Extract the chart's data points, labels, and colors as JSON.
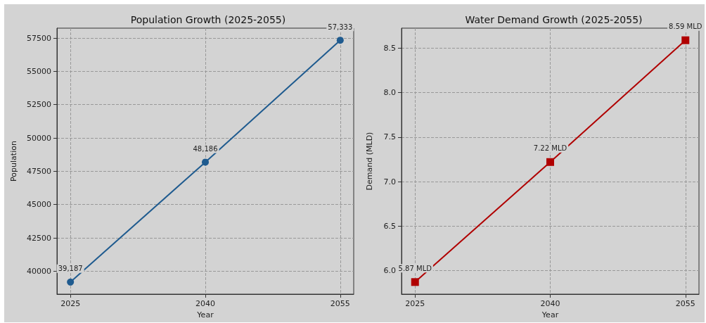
{
  "chart_data": [
    {
      "type": "line",
      "title": "Population Growth (2025-2055)",
      "xlabel": "Year",
      "ylabel": "Population",
      "x": [
        2025,
        2040,
        2055
      ],
      "series": [
        {
          "color": "#1f5b8f",
          "values": [
            39187,
            48186,
            57333
          ],
          "value_labels": [
            "39,187",
            "48,186",
            "57,333"
          ]
        }
      ],
      "xlim": [
        2023.5,
        2056.5
      ],
      "xticks": [
        2025,
        2040,
        2055
      ],
      "ylim": [
        38280,
        58240
      ],
      "yticks": [
        40000,
        42500,
        45000,
        47500,
        50000,
        52500,
        55000,
        57500
      ],
      "grid": true,
      "marker": "circle",
      "line_style": "solid"
    },
    {
      "type": "line",
      "title": "Water Demand Growth (2025-2055)",
      "xlabel": "Year",
      "ylabel": "Demand (MLD)",
      "x": [
        2025,
        2040,
        2055
      ],
      "series": [
        {
          "color": "#b00000",
          "values": [
            5.87,
            7.22,
            8.59
          ],
          "value_labels": [
            "5.87 MLD",
            "7.22 MLD",
            "8.59 MLD"
          ]
        }
      ],
      "xlim": [
        2023.5,
        2056.5
      ],
      "xticks": [
        2025,
        2040,
        2055
      ],
      "ylim": [
        5.734,
        8.726
      ],
      "yticks": [
        {
          "value": 6,
          "label": "6.0"
        },
        6.5,
        {
          "value": 7,
          "label": "7.0"
        },
        7.5,
        {
          "value": 8,
          "label": "8.0"
        },
        8.5
      ],
      "grid": true,
      "marker": "square",
      "line_style": "solid"
    }
  ]
}
